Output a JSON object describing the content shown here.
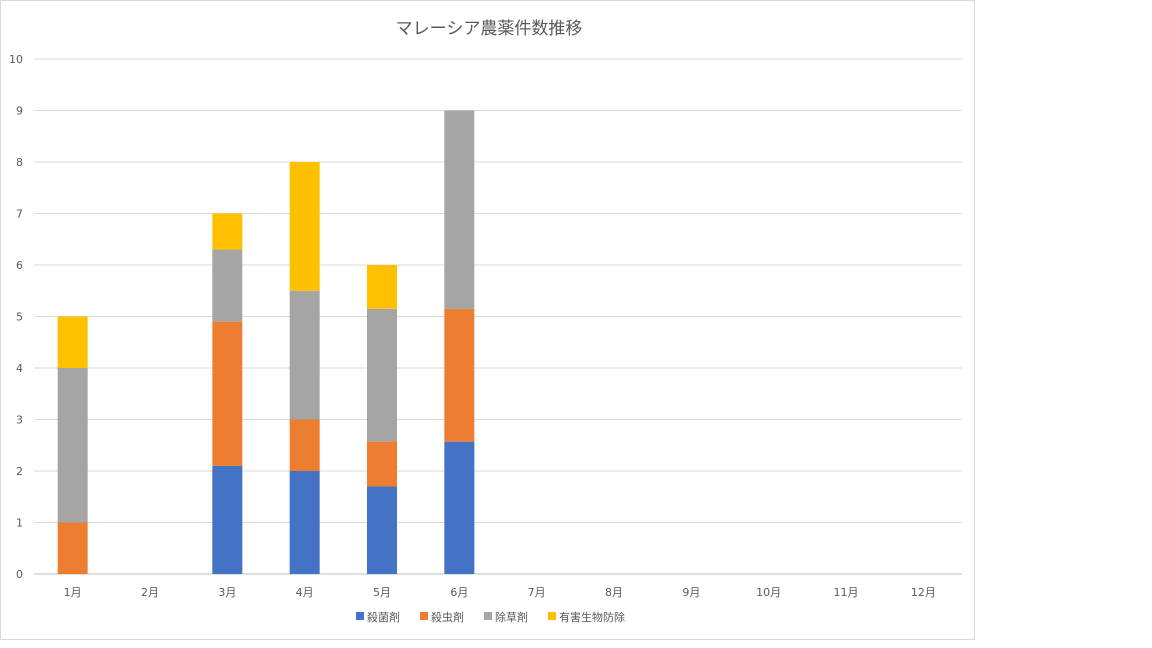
{
  "chart_data": {
    "type": "bar",
    "stacked": true,
    "title": "マレーシア農薬件数推移",
    "xlabel": "",
    "ylabel": "",
    "ylim": [
      0,
      10
    ],
    "yticks": [
      "0",
      "1",
      "2",
      "3",
      "4",
      "5",
      "6",
      "7",
      "8",
      "9",
      "10"
    ],
    "categories": [
      "1月",
      "2月",
      "3月",
      "4月",
      "5月",
      "6月",
      "7月",
      "8月",
      "9月",
      "10月",
      "11月",
      "12月"
    ],
    "grid": true,
    "legend_position": "bottom",
    "series": [
      {
        "name": "殺菌剤",
        "color": "#4472c4",
        "values": [
          0,
          0,
          2.1,
          2,
          1.7,
          2.57,
          0,
          0,
          0,
          0,
          0,
          0
        ]
      },
      {
        "name": "殺虫剤",
        "color": "#ed7d31",
        "values": [
          1,
          0,
          2.8,
          1,
          0.87,
          2.58,
          0,
          0,
          0,
          0,
          0,
          0
        ]
      },
      {
        "name": "除草剤",
        "color": "#a5a5a5",
        "values": [
          3,
          0,
          1.4,
          2.5,
          2.58,
          3.85,
          0,
          0,
          0,
          0,
          0,
          0
        ]
      },
      {
        "name": "有害生物防除",
        "color": "#ffc000",
        "values": [
          1,
          0,
          0.7,
          2.5,
          0.85,
          0,
          0,
          0,
          0,
          0,
          0,
          0
        ]
      }
    ]
  }
}
